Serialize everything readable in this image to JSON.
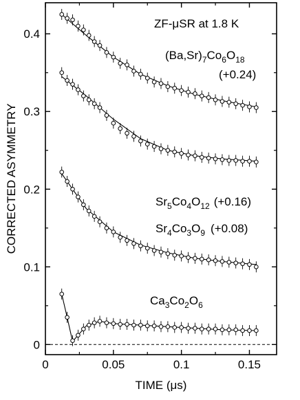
{
  "chart_data": {
    "type": "scatter",
    "title": "",
    "xlabel": "TIME (μs)",
    "ylabel": "CORRECTED ASYMMETRY",
    "xlim": [
      0,
      0.17
    ],
    "ylim": [
      -0.013,
      0.44
    ],
    "xticks": [
      "0",
      "0.05",
      "0.1",
      "0.15"
    ],
    "xtick_values": [
      0,
      0.05,
      0.1,
      0.15
    ],
    "yticks": [
      "0",
      "0.1",
      "0.2",
      "0.3",
      "0.4"
    ],
    "ytick_values": [
      0,
      0.1,
      0.2,
      0.3,
      0.4
    ],
    "grid": false,
    "baseline": {
      "y": 0,
      "style": "dashed"
    },
    "annotations": {
      "heading": "ZF-μSR at 1.8 K",
      "ba": {
        "pre": "(Ba,Sr)",
        "s1": "7",
        "m1": "Co",
        "s2": "6",
        "m2": "O",
        "s3": "18",
        "offset": "(+0.24)"
      },
      "sr5": {
        "pre": "Sr",
        "s1": "5",
        "m1": "Co",
        "s2": "4",
        "m2": "O",
        "s3": "12",
        "offset": "(+0.16)"
      },
      "sr4": {
        "pre": "Sr",
        "s1": "4",
        "m1": "Co",
        "s2": "3",
        "m2": "O",
        "s3": "9",
        "offset": "(+0.08)"
      },
      "ca": {
        "pre": "Ca",
        "s1": "3",
        "m1": "Co",
        "s2": "2",
        "m2": "O",
        "s3": "6"
      }
    },
    "series": [
      {
        "x": [
          0.012,
          0.016,
          0.02,
          0.024,
          0.028,
          0.032,
          0.036,
          0.04,
          0.045,
          0.05,
          0.055,
          0.06,
          0.065,
          0.07,
          0.075,
          0.08,
          0.085,
          0.09,
          0.095,
          0.1,
          0.105,
          0.11,
          0.115,
          0.12,
          0.125,
          0.13,
          0.135,
          0.14,
          0.145,
          0.15,
          0.155
        ],
        "y": [
          0.425,
          0.42,
          0.418,
          0.41,
          0.405,
          0.398,
          0.39,
          0.385,
          0.376,
          0.37,
          0.362,
          0.36,
          0.352,
          0.348,
          0.343,
          0.338,
          0.336,
          0.332,
          0.33,
          0.327,
          0.325,
          0.323,
          0.32,
          0.318,
          0.315,
          0.313,
          0.312,
          0.31,
          0.308,
          0.306,
          0.305
        ],
        "fit": [
          [
            0.012,
            0.425
          ],
          [
            0.03,
            0.398
          ],
          [
            0.05,
            0.37
          ],
          [
            0.07,
            0.348
          ],
          [
            0.09,
            0.333
          ],
          [
            0.11,
            0.322
          ],
          [
            0.13,
            0.314
          ],
          [
            0.155,
            0.306
          ]
        ]
      },
      {
        "x": [
          0.012,
          0.016,
          0.02,
          0.024,
          0.028,
          0.032,
          0.036,
          0.04,
          0.045,
          0.05,
          0.055,
          0.06,
          0.065,
          0.07,
          0.075,
          0.08,
          0.085,
          0.09,
          0.095,
          0.1,
          0.105,
          0.11,
          0.115,
          0.12,
          0.125,
          0.13,
          0.135,
          0.14,
          0.145,
          0.15,
          0.155
        ],
        "y": [
          0.35,
          0.34,
          0.335,
          0.328,
          0.32,
          0.315,
          0.31,
          0.305,
          0.295,
          0.285,
          0.278,
          0.272,
          0.268,
          0.262,
          0.258,
          0.255,
          0.252,
          0.25,
          0.248,
          0.246,
          0.244,
          0.243,
          0.241,
          0.24,
          0.239,
          0.238,
          0.237,
          0.237,
          0.236,
          0.236,
          0.235
        ],
        "fit": [
          [
            0.012,
            0.345
          ],
          [
            0.03,
            0.32
          ],
          [
            0.05,
            0.29
          ],
          [
            0.07,
            0.265
          ],
          [
            0.09,
            0.25
          ],
          [
            0.11,
            0.243
          ],
          [
            0.13,
            0.239
          ],
          [
            0.155,
            0.236
          ]
        ]
      },
      {
        "x": [
          0.012,
          0.016,
          0.02,
          0.024,
          0.028,
          0.032,
          0.036,
          0.04,
          0.045,
          0.05,
          0.055,
          0.06,
          0.065,
          0.07,
          0.075,
          0.08,
          0.085,
          0.09,
          0.095,
          0.1,
          0.105,
          0.11,
          0.115,
          0.12,
          0.125,
          0.13,
          0.135,
          0.14,
          0.145,
          0.15,
          0.155
        ],
        "y": [
          0.222,
          0.21,
          0.2,
          0.19,
          0.18,
          0.172,
          0.165,
          0.158,
          0.15,
          0.145,
          0.138,
          0.134,
          0.13,
          0.127,
          0.124,
          0.121,
          0.119,
          0.117,
          0.115,
          0.114,
          0.112,
          0.111,
          0.11,
          0.109,
          0.108,
          0.107,
          0.106,
          0.105,
          0.104,
          0.103,
          0.1
        ],
        "fit": [
          [
            0.012,
            0.22
          ],
          [
            0.03,
            0.175
          ],
          [
            0.05,
            0.145
          ],
          [
            0.07,
            0.128
          ],
          [
            0.09,
            0.118
          ],
          [
            0.11,
            0.111
          ],
          [
            0.13,
            0.107
          ],
          [
            0.155,
            0.103
          ]
        ]
      },
      {
        "x": [
          0.012,
          0.016,
          0.02,
          0.024,
          0.028,
          0.032,
          0.036,
          0.04,
          0.045,
          0.05,
          0.055,
          0.06,
          0.065,
          0.07,
          0.075,
          0.08,
          0.085,
          0.09,
          0.095,
          0.1,
          0.105,
          0.11,
          0.115,
          0.12,
          0.125,
          0.13,
          0.135,
          0.14,
          0.145,
          0.15,
          0.155
        ],
        "y": [
          0.065,
          0.035,
          0.005,
          0.012,
          0.02,
          0.025,
          0.028,
          0.03,
          0.028,
          0.027,
          0.026,
          0.026,
          0.025,
          0.025,
          0.024,
          0.024,
          0.023,
          0.023,
          0.022,
          0.022,
          0.021,
          0.021,
          0.02,
          0.02,
          0.02,
          0.019,
          0.019,
          0.019,
          0.018,
          0.018,
          0.018
        ],
        "fit": [
          [
            0.012,
            0.065
          ],
          [
            0.016,
            0.035
          ],
          [
            0.02,
            0.004
          ],
          [
            0.025,
            0.014
          ],
          [
            0.03,
            0.024
          ],
          [
            0.04,
            0.03
          ],
          [
            0.05,
            0.027
          ],
          [
            0.07,
            0.025
          ],
          [
            0.09,
            0.023
          ],
          [
            0.11,
            0.021
          ],
          [
            0.13,
            0.019
          ],
          [
            0.155,
            0.018
          ]
        ]
      }
    ]
  }
}
